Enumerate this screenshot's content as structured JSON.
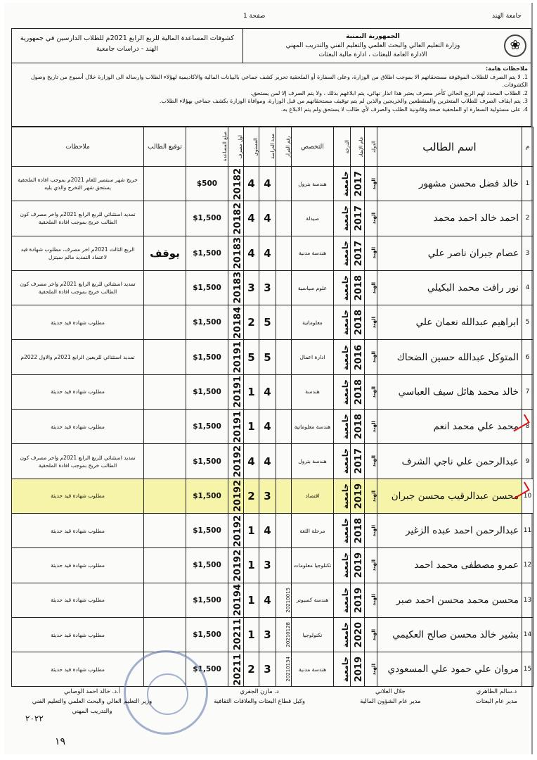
{
  "page_top": {
    "university": "جامعة الهند",
    "page": "صفحة 1"
  },
  "header": {
    "republic": "الجمهورية اليمنية",
    "ministry": "وزارة التعليم العالي والبحث العلمي والتعليم الفني والتدريب المهني",
    "department": "الادارة العامة للبعثات ، ادارة مالية البعثات",
    "title": "كشوفات المساعدة المالية للربع الرابع 2021م للطلاب الدارسين في جمهورية الهند - دراسات جامعية"
  },
  "notes": {
    "heading": "ملاحظات هامة:",
    "items": [
      "1. لا يتم الصرف للطلاب الموقوفة مستحقاتهم الا بموجب اطلاق من الوزارة، وعلى السفارة أو الملحقية تحرير كشف جماعي بالبيانات المالية والاكاديمية لهؤلاء الطلاب وارساله الى الوزارة خلال أسبوع من تاريخ وصول الكشوفات.",
      "2. الطلاب المحدد لهم الربع الحالي كأخر مصرف يعتبر هذا انذار نهائي، يتم ابلاغهم بذلك ، ولا يتم الصرف إلا لمن يستحق.",
      "3. يتم ايقاف الصرف للطلاب المتعثرين والمنقطعين والخريجين والذين لم يتم توقيف مستحقاتهم من قبل الوزارة، وموافاة الوزارة بكشف جماعي بهؤلاء الطلاب.",
      "4. على مسئولية السفارة او الملحقية صحة وقانونية الطلب والصرف لأي طالب لا يستحق ولم يتم الابلاغ به."
    ]
  },
  "columns": {
    "no": "م",
    "name": "اسم الطالب",
    "country": "الدولة",
    "year": "عام الإيفاد",
    "degree": "الدرجة",
    "spec": "التخصص",
    "decision": "رقم القرار",
    "duration": "مدة الدراسة",
    "level": "المستوى",
    "first": "اول مصرف",
    "amount": "مبلغ المساعدة",
    "signature": "توقيع الطالب",
    "remarks": "ملاحظات"
  },
  "rows": [
    {
      "no": "1",
      "name": "خالد فضل محسن مشهور",
      "country": "الهند",
      "year": "2017",
      "degree": "جامعية",
      "spec": "هندسة بترول",
      "decision": "",
      "duration": "4",
      "level": "4",
      "first": "20182",
      "amount": "$500",
      "signature": "",
      "remarks": "خريج شهر سبتمبر للعام 2021م بموجب افادة الملحقية يستحق شهر التخرج والذي يليه"
    },
    {
      "no": "2",
      "name": "احمد خالد احمد محمد",
      "country": "الهند",
      "year": "2017",
      "degree": "جامعية",
      "spec": "صيدلة",
      "decision": "",
      "duration": "4",
      "level": "4",
      "first": "20182",
      "amount": "$1,500",
      "signature": "",
      "remarks": "تمديد استثنائي للربع الرابع 2021م واخر مصرف كون الطالب خريج بموجب افادة الملحقية"
    },
    {
      "no": "3",
      "name": "عصام جبران ناصر علي",
      "country": "الهند",
      "year": "2017",
      "degree": "جامعية",
      "spec": "هندسة مدنية",
      "decision": "",
      "duration": "4",
      "level": "4",
      "first": "20183",
      "amount": "$1,500",
      "signature": "يوقف",
      "remarks": "الربع الثالث 2021م اخر مصرف، مطلوب شهادة قيد لاعتماد التمديد مالم سيتزل"
    },
    {
      "no": "4",
      "name": "نور رافت محمد البكيلي",
      "country": "الهند",
      "year": "2018",
      "degree": "جامعية",
      "spec": "علوم سياسية",
      "decision": "",
      "duration": "3",
      "level": "3",
      "first": "20183",
      "amount": "$1,500",
      "signature": "",
      "remarks": "تمديد استثنائي للربع الرابع 2021م واخر مصرف كون الطالب خريج بموجب افادة الملحقية"
    },
    {
      "no": "5",
      "name": "ابراهيم عبدالله نعمان علي",
      "country": "الهند",
      "year": "2018",
      "degree": "جامعية",
      "spec": "معلوماتية",
      "decision": "",
      "duration": "5",
      "level": "2",
      "first": "20184",
      "amount": "$1,500",
      "signature": "",
      "remarks": "مطلوب شهادة قيد حديثة"
    },
    {
      "no": "6",
      "name": "المتوكل عبدالله حسين الضحاك",
      "country": "الهند",
      "year": "2016",
      "degree": "جامعية",
      "spec": "ادارة اعمال",
      "decision": "",
      "duration": "5",
      "level": "5",
      "first": "20191",
      "amount": "$1,500",
      "signature": "",
      "remarks": "تمديد استثنائي للربعين الرابع 2021م والاول 2022م"
    },
    {
      "no": "7",
      "name": "خالد محمد هائل سيف العباسي",
      "country": "الهند",
      "year": "2018",
      "degree": "جامعية",
      "spec": "هندسة",
      "decision": "",
      "duration": "4",
      "level": "1",
      "first": "20191",
      "amount": "$1,500",
      "signature": "",
      "remarks": "مطلوب شهادة قيد حديثة"
    },
    {
      "no": "8",
      "name": "محمد علي محمد انعم",
      "country": "الهند",
      "year": "2018",
      "degree": "جامعية",
      "spec": "هندسة معلوماتية",
      "decision": "",
      "duration": "4",
      "level": "1",
      "first": "20191",
      "amount": "$1,500",
      "signature": "",
      "remarks": "مطلوب شهادة قيد حديثة"
    },
    {
      "no": "9",
      "name": "عبدالرحمن علي ناجي الشرف",
      "country": "الهند",
      "year": "2017",
      "degree": "جامعية",
      "spec": "هندسة بترول",
      "decision": "",
      "duration": "4",
      "level": "4",
      "first": "20192",
      "amount": "$1,500",
      "signature": "",
      "remarks": "تمديد استثنائي للربع الرابع 2021م واخر مصرف كون الطالب خريج بموجب افادة الملحقية"
    },
    {
      "no": "10",
      "name": "محسن عبدالرقيب محسن جبران",
      "country": "الهند",
      "year": "2019",
      "degree": "جامعية",
      "spec": "اقتصاد",
      "decision": "",
      "duration": "3",
      "level": "2",
      "first": "20192",
      "amount": "$1,500",
      "signature": "",
      "remarks": "مطلوب شهادة قيد حديثة",
      "highlight": true
    },
    {
      "no": "11",
      "name": "عبدالرحمن احمد عبده الزغير",
      "country": "الهند",
      "year": "2018",
      "degree": "جامعية",
      "spec": "مرحلة اللغة",
      "decision": "",
      "duration": "4",
      "level": "1",
      "first": "20192",
      "amount": "$1,500",
      "signature": "",
      "remarks": "مطلوب شهادة قيد حديثة"
    },
    {
      "no": "12",
      "name": "عمرو مصطفى محمد احمد",
      "country": "الهند",
      "year": "2019",
      "degree": "جامعية",
      "spec": "تكنلوجيا معلومات",
      "decision": "",
      "duration": "3",
      "level": "1",
      "first": "20192",
      "amount": "$1,500",
      "signature": "",
      "remarks": "مطلوب شهادة قيد حديثة"
    },
    {
      "no": "13",
      "name": "محسن محمد محسن احمد صبر",
      "country": "الهند",
      "year": "2019",
      "degree": "جامعية",
      "spec": "هندسة كمبيوتر",
      "decision": "20210015",
      "duration": "4",
      "level": "1",
      "first": "20194",
      "amount": "$1,500",
      "signature": "",
      "remarks": "مطلوب شهادة قيد حديثة"
    },
    {
      "no": "14",
      "name": "بشير خالد محسن صالح العكيمي",
      "country": "الهند",
      "year": "2020",
      "degree": "جامعية",
      "spec": "تكنولوجيا",
      "decision": "20210128",
      "duration": "3",
      "level": "1",
      "first": "20211",
      "amount": "$1,500",
      "signature": "",
      "remarks": "مطلوب شهادة قيد حديثة"
    },
    {
      "no": "15",
      "name": "مروان علي حمود علي المسعودي",
      "country": "الهند",
      "year": "2019",
      "degree": "جامعية",
      "spec": "هندسة مدنية",
      "decision": "20210134",
      "duration": "3",
      "level": "2",
      "first": "20211",
      "amount": "$1,500",
      "signature": "",
      "remarks": "مطلوب شهادة قيد حديثة"
    }
  ],
  "signatories": [
    {
      "name": "د.سالم الطاهري",
      "role": "مدير عام البعثات"
    },
    {
      "name": "جلال العلاني",
      "role": "مدير عام الشؤون المالية"
    },
    {
      "name": "د. مازن الجفري",
      "role": "وكيل قطاع البعثات والعلاقات الثقافية"
    },
    {
      "name": "أ.د. خالد احمد الوصابي",
      "role": "وزير التعليم العالي والبحث العلمي والتعليم الفني والتدريب المهني"
    }
  ],
  "handwritten": {
    "date": "٢٠٢٢",
    "number": "١٩"
  },
  "colors": {
    "highlight": "#f6f4a8",
    "marks": "#d11111",
    "stamp": "#6a7fb0"
  }
}
